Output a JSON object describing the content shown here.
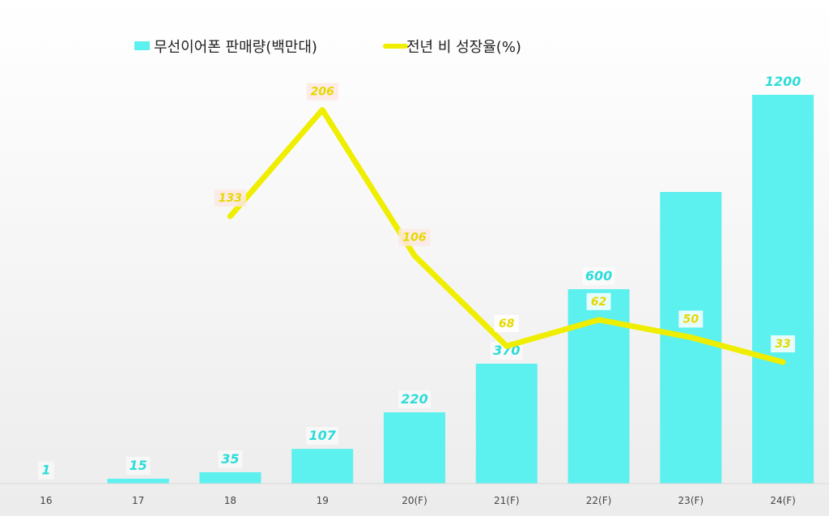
{
  "chart_data": {
    "type": "bar+line",
    "categories": [
      "16",
      "17",
      "18",
      "19",
      "20(F)",
      "21(F)",
      "22(F)",
      "23(F)",
      "24(F)"
    ],
    "series": [
      {
        "name": "무선이어폰 판매량(백만대)",
        "type": "bar",
        "color": "#5cf0ee",
        "values": [
          1,
          15,
          35,
          107,
          220,
          370,
          600,
          900,
          1200
        ],
        "labels": [
          "1",
          "15",
          "35",
          "107",
          "220",
          "370",
          "600",
          "",
          "1200"
        ]
      },
      {
        "name": "전년 비 성장율(%)",
        "type": "line",
        "color": "#f0ee00",
        "values": [
          null,
          null,
          133,
          206,
          106,
          68,
          62,
          50,
          33
        ],
        "labels": [
          "",
          "",
          "133",
          "206",
          "106",
          "68",
          "62",
          "50",
          "33"
        ]
      }
    ],
    "legend_position": "top",
    "grid": false
  }
}
